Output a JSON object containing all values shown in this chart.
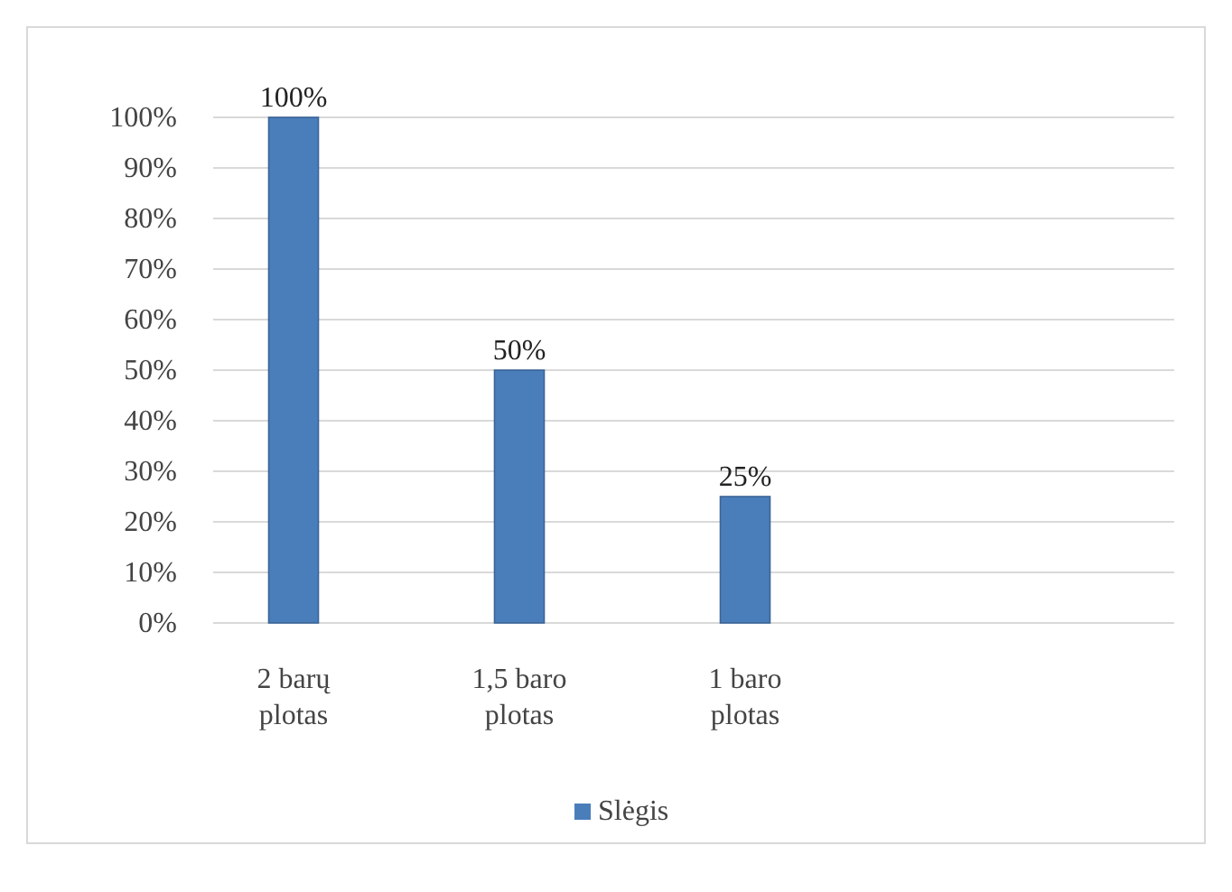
{
  "chart_data": {
    "type": "bar",
    "categories": [
      "2 barų plotas",
      "1,5 baro plotas",
      "1 baro plotas",
      null
    ],
    "series": [
      {
        "name": "Slėgis",
        "color": "#4a7ebb",
        "values": [
          100,
          50,
          25,
          null
        ],
        "value_labels": [
          "100%",
          "50%",
          "25%",
          null
        ]
      }
    ],
    "ylim": [
      0,
      100
    ],
    "yticks": [
      {
        "value": 0,
        "label": "0%"
      },
      {
        "value": 10,
        "label": "10%"
      },
      {
        "value": 20,
        "label": "20%"
      },
      {
        "value": 30,
        "label": "30%"
      },
      {
        "value": 40,
        "label": "40%"
      },
      {
        "value": 50,
        "label": "50%"
      },
      {
        "value": 60,
        "label": "60%"
      },
      {
        "value": 70,
        "label": "70%"
      },
      {
        "value": 80,
        "label": "80%"
      },
      {
        "value": 90,
        "label": "90%"
      },
      {
        "value": 100,
        "label": "100%"
      }
    ],
    "grid": "y",
    "legend": "bottom"
  }
}
